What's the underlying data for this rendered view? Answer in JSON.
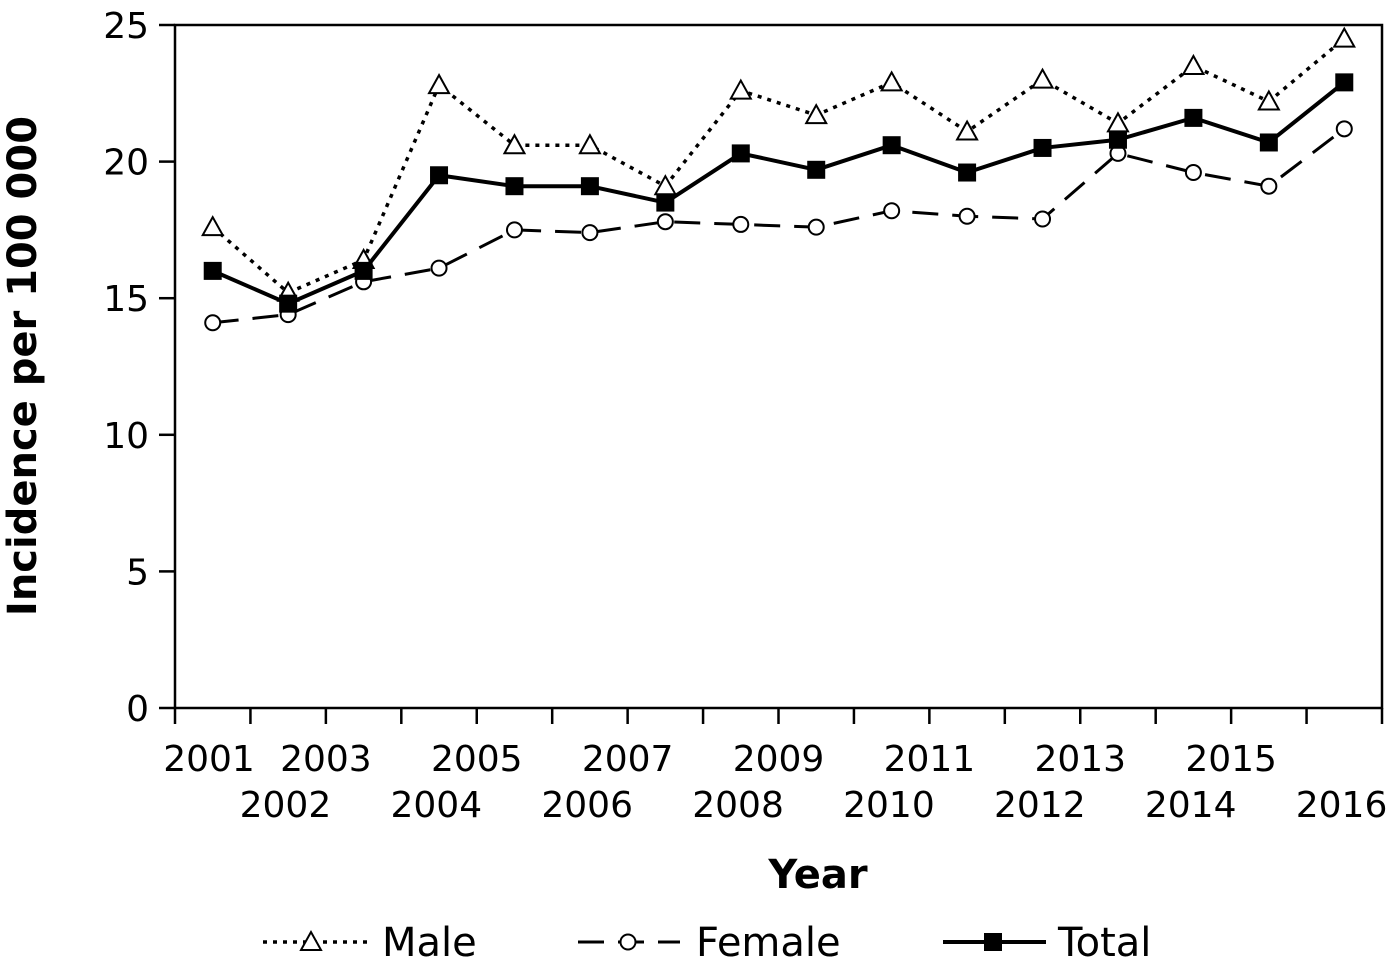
{
  "chart_data": {
    "type": "line",
    "xlabel": "Year",
    "ylabel": "Incidence per 100 000",
    "ylim": [
      0,
      25
    ],
    "yticks": [
      0,
      5,
      10,
      15,
      20,
      25
    ],
    "grid": false,
    "legend_position": "bottom",
    "categories": [
      "2001",
      "2002",
      "2003",
      "2004",
      "2005",
      "2006",
      "2007",
      "2008",
      "2009",
      "2010",
      "2011",
      "2012",
      "2013",
      "2014",
      "2015",
      "2016"
    ],
    "series": [
      {
        "name": "Male",
        "style": "dotted",
        "marker": "open-triangle",
        "color": "#000000",
        "values": [
          17.6,
          15.2,
          16.4,
          22.8,
          20.6,
          20.6,
          19.1,
          22.6,
          21.7,
          22.9,
          21.1,
          23.0,
          21.4,
          23.5,
          22.2,
          24.5
        ]
      },
      {
        "name": "Female",
        "style": "dashed",
        "marker": "open-circle",
        "color": "#000000",
        "values": [
          14.1,
          14.4,
          15.6,
          16.1,
          17.5,
          17.4,
          17.8,
          17.7,
          17.6,
          18.2,
          18.0,
          17.9,
          20.3,
          19.6,
          19.1,
          21.2
        ]
      },
      {
        "name": "Total",
        "style": "solid",
        "marker": "filled-square",
        "color": "#000000",
        "values": [
          16.0,
          14.8,
          16.0,
          19.5,
          19.1,
          19.1,
          18.5,
          20.3,
          19.7,
          20.6,
          19.6,
          20.5,
          20.8,
          21.6,
          20.7,
          22.9
        ]
      }
    ]
  }
}
